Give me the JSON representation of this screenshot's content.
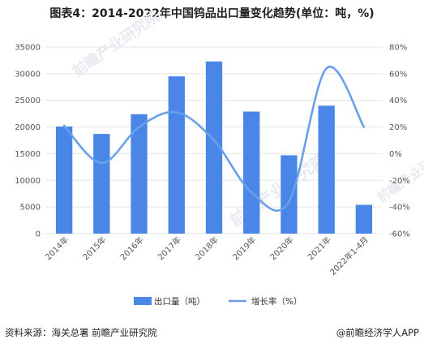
{
  "title": "图表4：2014-2022年中国钨品出口量变化趋势(单位：吨，%)",
  "footer": {
    "source": "资料来源：海关总署 前瞻产业研究院",
    "brand": "@前瞻经济学人APP"
  },
  "watermark": "前瞻产业研究院",
  "colors": {
    "bar": "#4a86e8",
    "line": "#6aa0ea",
    "grid": "#e6e6e6",
    "axis": "#555555"
  },
  "chart_data": {
    "type": "bar",
    "categories": [
      "2014年",
      "2015年",
      "2016年",
      "2017年",
      "2018年",
      "2019年",
      "2020年",
      "2021年",
      "2022年1-4月"
    ],
    "series": [
      {
        "name": "出口量（吨）",
        "type": "bar",
        "axis": "left",
        "values": [
          20100,
          18700,
          22400,
          29500,
          32300,
          22900,
          14700,
          24000,
          5400
        ]
      },
      {
        "name": "增长率（%）",
        "type": "line",
        "axis": "right",
        "values": [
          21,
          -7,
          20,
          31,
          10,
          -29,
          -36,
          64,
          20
        ]
      }
    ],
    "y_left": {
      "min": 0,
      "max": 35000,
      "step": 5000,
      "ticks": [
        "0",
        "5000",
        "10000",
        "15000",
        "20000",
        "25000",
        "30000",
        "35000"
      ]
    },
    "y_right": {
      "min": -60,
      "max": 80,
      "step": 20,
      "ticks": [
        "-60%",
        "-40%",
        "-20%",
        "0%",
        "20%",
        "40%",
        "60%",
        "80%"
      ]
    },
    "grid": true,
    "legend": "bottom"
  }
}
